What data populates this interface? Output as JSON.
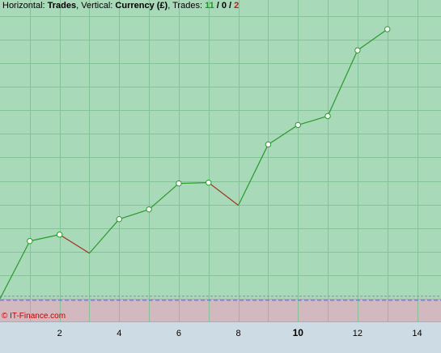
{
  "header": {
    "horizontal_prefix": "Horizontal: ",
    "horizontal_value": "Trades",
    "vertical_prefix": ", Vertical: ",
    "vertical_value": "Currency (£)",
    "trades_prefix": ", Trades: ",
    "wins": "11",
    "sep1": " / ",
    "neutral": "0",
    "sep2": " / ",
    "losses": "2"
  },
  "credit": "© IT-Finance.com",
  "colors": {
    "plot_bg": "#a8d9b8",
    "grid": "#86c298",
    "loss_zone": "#d2b9c0",
    "outer_bg": "#cddbe4",
    "up_line": "#2a9a2a",
    "down_line": "#a03020",
    "marker_fill": "#ffffff",
    "marker_stroke": "#2a9a2a",
    "zero_line_dashed": "#6060c0"
  },
  "chart_data": {
    "type": "line",
    "title": "",
    "xlabel": "Trades",
    "ylabel": "Currency (£)",
    "x": [
      0,
      1,
      2,
      3,
      4,
      5,
      6,
      7,
      8,
      9,
      10,
      11,
      12,
      13
    ],
    "y": [
      0,
      71,
      79,
      56,
      98,
      110,
      142,
      143,
      115,
      190,
      214,
      225,
      306,
      332
    ],
    "markers_on": [
      1,
      2,
      4,
      5,
      6,
      7,
      9,
      10,
      11,
      12,
      13
    ],
    "x_ticks": [
      "2",
      "4",
      "6",
      "8",
      "10",
      "12",
      "14"
    ],
    "x_tick_values": [
      2,
      4,
      6,
      8,
      10,
      12,
      14
    ],
    "bold_x_tick": "10",
    "xlim": [
      0,
      14.8
    ],
    "ylim": [
      -28,
      368
    ],
    "grid": true,
    "vgrid_step": 1,
    "hgrid_step": 29,
    "segment_colors": [
      "up",
      "up",
      "down",
      "up",
      "up",
      "up",
      "up",
      "down",
      "up",
      "up",
      "up",
      "up",
      "up"
    ]
  }
}
